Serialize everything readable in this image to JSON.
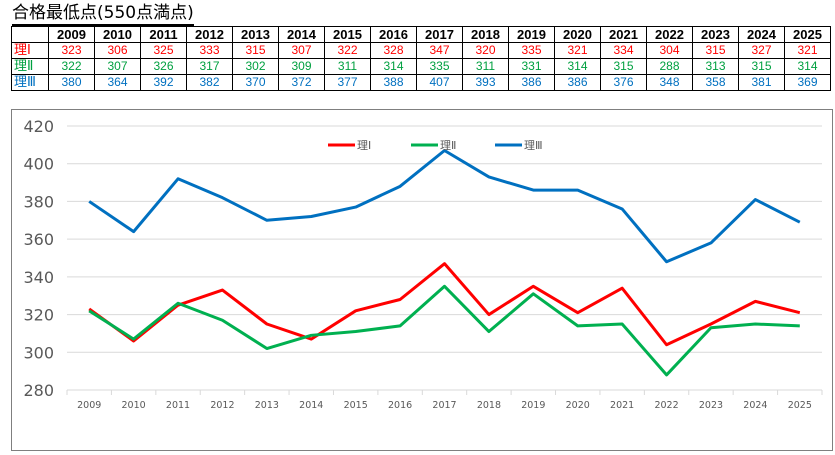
{
  "title": "合格最低点(550点満点)",
  "table": {
    "years": [
      "2009",
      "2010",
      "2011",
      "2012",
      "2013",
      "2014",
      "2015",
      "2016",
      "2017",
      "2018",
      "2019",
      "2020",
      "2021",
      "2022",
      "2023",
      "2024",
      "2025"
    ],
    "rows": [
      {
        "label": "理Ⅰ",
        "color": "#ff0000",
        "values": [
          "323",
          "306",
          "325",
          "333",
          "315",
          "307",
          "322",
          "328",
          "347",
          "320",
          "335",
          "321",
          "334",
          "304",
          "315",
          "327",
          "321"
        ]
      },
      {
        "label": "理Ⅱ",
        "color": "#00a040",
        "values": [
          "322",
          "307",
          "326",
          "317",
          "302",
          "309",
          "311",
          "314",
          "335",
          "311",
          "331",
          "314",
          "315",
          "288",
          "313",
          "315",
          "314"
        ]
      },
      {
        "label": "理Ⅲ",
        "color": "#0070c0",
        "values": [
          "380",
          "364",
          "392",
          "382",
          "370",
          "372",
          "377",
          "388",
          "407",
          "393",
          "386",
          "386",
          "376",
          "348",
          "358",
          "381",
          "369"
        ]
      }
    ]
  },
  "chart_data": {
    "type": "line",
    "title": "",
    "xlabel": "",
    "ylabel": "",
    "x": [
      "2009",
      "2010",
      "2011",
      "2012",
      "2013",
      "2014",
      "2015",
      "2016",
      "2017",
      "2018",
      "2019",
      "2020",
      "2021",
      "2022",
      "2023",
      "2024",
      "2025"
    ],
    "ylim": [
      280,
      420
    ],
    "yticks": [
      280,
      300,
      320,
      340,
      360,
      380,
      400,
      420
    ],
    "grid": true,
    "legend_position": "top-center",
    "series": [
      {
        "name": "理Ⅰ",
        "color": "#ff0000",
        "values": [
          323,
          306,
          325,
          333,
          315,
          307,
          322,
          328,
          347,
          320,
          335,
          321,
          334,
          304,
          315,
          327,
          321
        ]
      },
      {
        "name": "理Ⅱ",
        "color": "#00b050",
        "values": [
          322,
          307,
          326,
          317,
          302,
          309,
          311,
          314,
          335,
          311,
          331,
          314,
          315,
          288,
          313,
          315,
          314
        ]
      },
      {
        "name": "理Ⅲ",
        "color": "#0070c0",
        "values": [
          380,
          364,
          392,
          382,
          370,
          372,
          377,
          388,
          407,
          393,
          386,
          386,
          376,
          348,
          358,
          381,
          369
        ]
      }
    ]
  }
}
